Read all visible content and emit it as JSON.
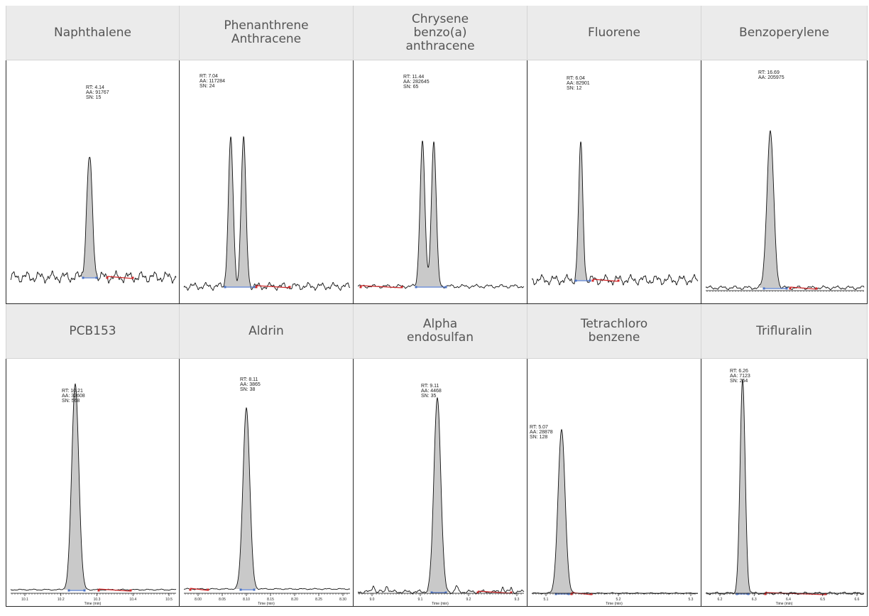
{
  "colors": {
    "header_bg": "#ebebeb",
    "header_text": "#555555",
    "peak_fill": "#c9c9c9",
    "trace": "#111111",
    "baseline_blue": "#4a72c4",
    "baseline_red": "#d0282a"
  },
  "chart_data": [
    {
      "type": "line",
      "title": "Naphthalene",
      "annotations": [
        "RT: 4.14",
        "AA: 91767",
        "SN: 15"
      ],
      "peaks": [
        {
          "rt": 4.14,
          "area": 91767,
          "sn": 15
        }
      ],
      "noise": "high",
      "xlabel": "",
      "x_ticks": [],
      "grid": false
    },
    {
      "type": "line",
      "title": "Phenanthrene\nAnthracene",
      "annotations": [
        "RT: 7.04",
        "AA: 117284",
        "SN: 24"
      ],
      "peaks": [
        {
          "rt": 7.04,
          "area": 117284,
          "sn": 24
        },
        {
          "rt": null
        }
      ],
      "noise": "high",
      "xlabel": "",
      "x_ticks": [],
      "grid": false
    },
    {
      "type": "line",
      "title": "Chrysene\nbenzo(a)\nanthracene",
      "annotations": [
        "RT: 11.44",
        "AA: 282645",
        "SN: 65"
      ],
      "peaks": [
        {
          "rt": 11.44,
          "area": 282645,
          "sn": 65
        },
        {
          "rt": null
        }
      ],
      "noise": "low",
      "xlabel": "",
      "x_ticks": [],
      "grid": false
    },
    {
      "type": "line",
      "title": "Fluorene",
      "annotations": [
        "RT: 6.04",
        "AA: 82901",
        "SN: 12"
      ],
      "peaks": [
        {
          "rt": 6.04,
          "area": 82901,
          "sn": 12
        }
      ],
      "noise": "high",
      "xlabel": "",
      "x_ticks": [],
      "grid": false
    },
    {
      "type": "line",
      "title": "Benzoperylene",
      "annotations": [
        "RT: 16.69",
        "AA: 205975"
      ],
      "peaks": [
        {
          "rt": 16.69,
          "area": 205975
        }
      ],
      "noise": "low",
      "xlabel": "",
      "x_ticks": [],
      "grid": false
    },
    {
      "type": "line",
      "title": "PCB153",
      "annotations": [
        "RT: 10.21",
        "AA: 32608",
        "SN: 568"
      ],
      "peaks": [
        {
          "rt": 10.21,
          "area": 32608,
          "sn": 568
        }
      ],
      "noise": "very-low",
      "xlabel": "Time (min)",
      "x_ticks": [
        "10.1",
        "10.2",
        "10.3",
        "10.4",
        "10.5"
      ],
      "grid": false
    },
    {
      "type": "line",
      "title": "Aldrin",
      "annotations": [
        "RT: 8.11",
        "AA: 3865",
        "SN: 38"
      ],
      "peaks": [
        {
          "rt": 8.11,
          "area": 3865,
          "sn": 38
        }
      ],
      "noise": "very-low",
      "xlabel": "Time (min)",
      "x_ticks": [
        "8.00",
        "8.05",
        "8.10",
        "8.15",
        "8.20",
        "8.25",
        "8.30"
      ],
      "grid": false
    },
    {
      "type": "line",
      "title": "Alpha\nendosulfan",
      "annotations": [
        "RT: 9.11",
        "AA: 4468",
        "SN: 35"
      ],
      "peaks": [
        {
          "rt": 9.11,
          "area": 4468,
          "sn": 35
        }
      ],
      "noise": "low",
      "xlabel": "Time (min)",
      "x_ticks": [
        "9.0",
        "9.1",
        "9.2",
        "9.3"
      ],
      "grid": false
    },
    {
      "type": "line",
      "title": "Tetrachloro\nbenzene",
      "annotations": [
        "RT: 5.07",
        "AA: 28878",
        "SN: 128"
      ],
      "peaks": [
        {
          "rt": 5.07,
          "area": 28878,
          "sn": 128
        }
      ],
      "noise": "very-low",
      "xlabel": "Time (min)",
      "x_ticks": [
        "5.1",
        "5.2",
        "5.3"
      ],
      "grid": false
    },
    {
      "type": "line",
      "title": "Trifluralin",
      "annotations": [
        "RT: 6.26",
        "AA: 7123",
        "SN: 254"
      ],
      "peaks": [
        {
          "rt": 6.26,
          "area": 7123,
          "sn": 254
        }
      ],
      "noise": "very-low",
      "xlabel": "Time (min)",
      "x_ticks": [
        "6.2",
        "6.3",
        "6.4",
        "6.5",
        "6.6"
      ],
      "grid": false
    }
  ]
}
